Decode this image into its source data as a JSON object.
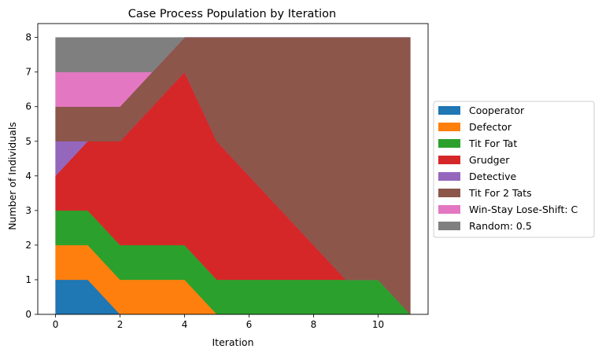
{
  "chart_data": {
    "type": "area",
    "title": "Case Process Population by Iteration",
    "xlabel": "Iteration",
    "ylabel": "Number of Individuals",
    "xlim": [
      -0.55,
      11.55
    ],
    "ylim": [
      0,
      8.4
    ],
    "xticks": [
      0,
      2,
      4,
      6,
      8,
      10
    ],
    "yticks": [
      0,
      1,
      2,
      3,
      4,
      5,
      6,
      7,
      8
    ],
    "legend_position": "right-outside",
    "x": [
      0,
      1,
      2,
      3,
      4,
      5,
      6,
      7,
      8,
      9,
      10,
      11
    ],
    "series": [
      {
        "name": "Cooperator",
        "color": "#1f77b4",
        "values": [
          1,
          1,
          0,
          0,
          0,
          0,
          0,
          0,
          0,
          0,
          0,
          0
        ]
      },
      {
        "name": "Defector",
        "color": "#ff7f0e",
        "values": [
          1,
          1,
          1,
          1,
          1,
          0,
          0,
          0,
          0,
          0,
          0,
          0
        ]
      },
      {
        "name": "Tit For Tat",
        "color": "#2ca02c",
        "values": [
          1,
          1,
          1,
          1,
          1,
          1,
          1,
          1,
          1,
          1,
          1,
          0
        ]
      },
      {
        "name": "Grudger",
        "color": "#d62728",
        "values": [
          1,
          2,
          3,
          4,
          5,
          4,
          3,
          2,
          1,
          0,
          0,
          0
        ]
      },
      {
        "name": "Detective",
        "color": "#9467bd",
        "values": [
          1,
          0,
          0,
          0,
          0,
          0,
          0,
          0,
          0,
          0,
          0,
          0
        ]
      },
      {
        "name": "Tit For 2 Tats",
        "color": "#8c564b",
        "values": [
          1,
          1,
          1,
          1,
          1,
          3,
          4,
          5,
          6,
          7,
          7,
          8
        ]
      },
      {
        "name": "Win-Stay Lose-Shift: C",
        "color": "#e377c2",
        "values": [
          1,
          1,
          1,
          0,
          0,
          0,
          0,
          0,
          0,
          0,
          0,
          0
        ]
      },
      {
        "name": "Random: 0.5",
        "color": "#7f7f7f",
        "values": [
          1,
          1,
          1,
          1,
          0,
          0,
          0,
          0,
          0,
          0,
          0,
          0
        ]
      }
    ]
  }
}
